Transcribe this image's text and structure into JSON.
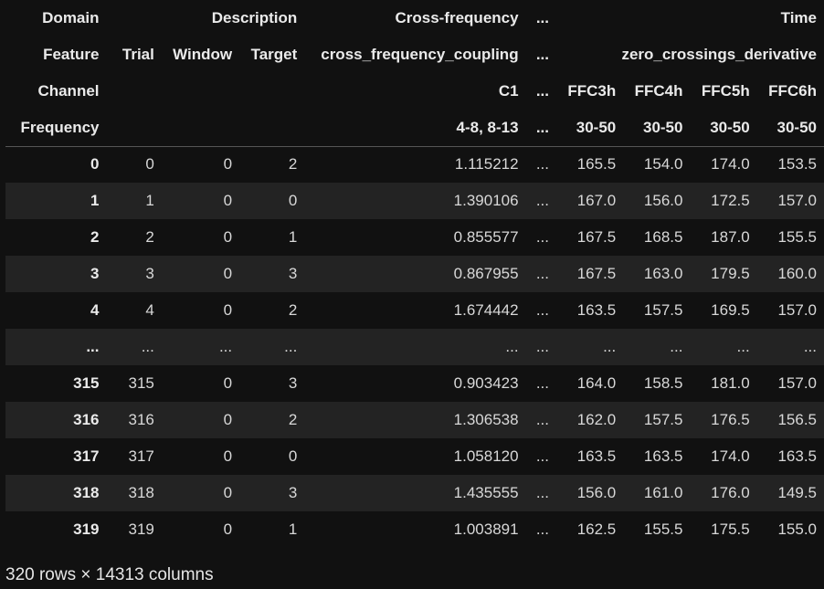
{
  "header_rows": [
    {
      "label": "Domain",
      "cells": [
        {
          "text": "",
          "span": 1
        },
        {
          "text": "Description",
          "span": 2
        },
        {
          "text": "Cross-frequency",
          "span": 1
        },
        {
          "text": "...",
          "span": 1
        },
        {
          "text": "Time",
          "span": 4
        }
      ]
    },
    {
      "label": "Feature",
      "cells": [
        {
          "text": "Trial",
          "span": 1
        },
        {
          "text": "Window",
          "span": 1
        },
        {
          "text": "Target",
          "span": 1
        },
        {
          "text": "cross_frequency_coupling",
          "span": 1
        },
        {
          "text": "...",
          "span": 1
        },
        {
          "text": "zero_crossings_derivative",
          "span": 4
        }
      ]
    },
    {
      "label": "Channel",
      "cells": [
        {
          "text": "",
          "span": 1
        },
        {
          "text": "",
          "span": 1
        },
        {
          "text": "",
          "span": 1
        },
        {
          "text": "C1",
          "span": 1
        },
        {
          "text": "...",
          "span": 1
        },
        {
          "text": "FFC3h",
          "span": 1
        },
        {
          "text": "FFC4h",
          "span": 1
        },
        {
          "text": "FFC5h",
          "span": 1
        },
        {
          "text": "FFC6h",
          "span": 1
        }
      ]
    },
    {
      "label": "Frequency",
      "cells": [
        {
          "text": "",
          "span": 1
        },
        {
          "text": "",
          "span": 1
        },
        {
          "text": "",
          "span": 1
        },
        {
          "text": "4-8, 8-13",
          "span": 1
        },
        {
          "text": "...",
          "span": 1
        },
        {
          "text": "30-50",
          "span": 1
        },
        {
          "text": "30-50",
          "span": 1
        },
        {
          "text": "30-50",
          "span": 1
        },
        {
          "text": "30-50",
          "span": 1
        }
      ]
    }
  ],
  "rows": [
    {
      "index": "0",
      "cells": [
        "0",
        "0",
        "2",
        "1.115212",
        "...",
        "165.5",
        "154.0",
        "174.0",
        "153.5"
      ]
    },
    {
      "index": "1",
      "cells": [
        "1",
        "0",
        "0",
        "1.390106",
        "...",
        "167.0",
        "156.0",
        "172.5",
        "157.0"
      ]
    },
    {
      "index": "2",
      "cells": [
        "2",
        "0",
        "1",
        "0.855577",
        "...",
        "167.5",
        "168.5",
        "187.0",
        "155.5"
      ]
    },
    {
      "index": "3",
      "cells": [
        "3",
        "0",
        "3",
        "0.867955",
        "...",
        "167.5",
        "163.0",
        "179.5",
        "160.0"
      ]
    },
    {
      "index": "4",
      "cells": [
        "4",
        "0",
        "2",
        "1.674442",
        "...",
        "163.5",
        "157.5",
        "169.5",
        "157.0"
      ]
    },
    {
      "index": "...",
      "cells": [
        "...",
        "...",
        "...",
        "...",
        "...",
        "...",
        "...",
        "...",
        "..."
      ]
    },
    {
      "index": "315",
      "cells": [
        "315",
        "0",
        "3",
        "0.903423",
        "...",
        "164.0",
        "158.5",
        "181.0",
        "157.0"
      ]
    },
    {
      "index": "316",
      "cells": [
        "316",
        "0",
        "2",
        "1.306538",
        "...",
        "162.0",
        "157.5",
        "176.5",
        "156.5"
      ]
    },
    {
      "index": "317",
      "cells": [
        "317",
        "0",
        "0",
        "1.058120",
        "...",
        "163.5",
        "163.5",
        "174.0",
        "163.5"
      ]
    },
    {
      "index": "318",
      "cells": [
        "318",
        "0",
        "3",
        "1.435555",
        "...",
        "156.0",
        "161.0",
        "176.0",
        "149.5"
      ]
    },
    {
      "index": "319",
      "cells": [
        "319",
        "0",
        "1",
        "1.003891",
        "...",
        "162.5",
        "155.5",
        "175.5",
        "155.0"
      ]
    }
  ],
  "footer": "320 rows × 14313 columns",
  "colors": {
    "background": "#111111",
    "stripe": "#232323",
    "text": "#e6e6e6"
  }
}
